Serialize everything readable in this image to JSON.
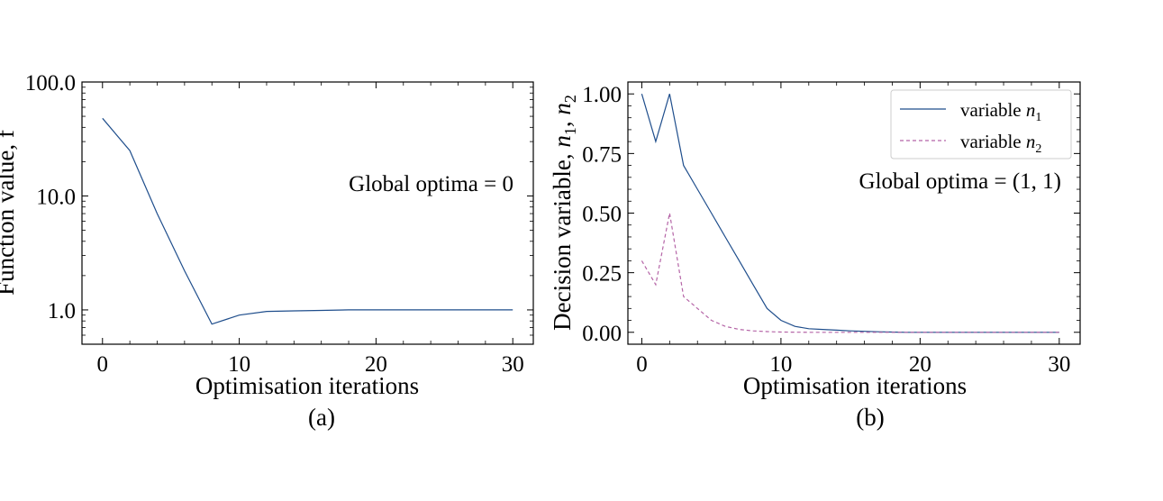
{
  "chart_data": [
    {
      "type": "line",
      "panel_label": "(a)",
      "xlabel": "Optimisation iterations",
      "ylabel": "Function value, f",
      "yscale": "log",
      "xlim": [
        -1.5,
        31.5
      ],
      "ylim": [
        0.5,
        100
      ],
      "xticks": [
        0,
        10,
        20,
        30
      ],
      "xtick_labels": [
        "0",
        "10",
        "20",
        "30"
      ],
      "yticks": [
        1,
        10,
        100
      ],
      "ytick_labels": [
        "1.0",
        "10.0",
        "100.0"
      ],
      "annotation": "Global optima = 0",
      "series": [
        {
          "color": "#1f4e8c",
          "dash": "solid",
          "x": [
            0,
            2,
            4,
            6,
            8,
            10,
            12,
            14,
            16,
            18,
            20,
            22,
            24,
            26,
            28,
            30
          ],
          "y": [
            48,
            25,
            7,
            2.2,
            0.75,
            0.9,
            0.97,
            0.98,
            0.99,
            1.0,
            1.0,
            1.0,
            1.0,
            1.0,
            1.0,
            1.0
          ]
        }
      ]
    },
    {
      "type": "line",
      "panel_label": "(b)",
      "xlabel": "Optimisation iterations",
      "ylabel": "Decision variable, n1, n2",
      "xlim": [
        -1.0,
        31.5
      ],
      "ylim": [
        -0.05,
        1.05
      ],
      "xticks": [
        0,
        10,
        20,
        30
      ],
      "xtick_labels": [
        "0",
        "10",
        "20",
        "30"
      ],
      "yticks": [
        0,
        0.25,
        0.5,
        0.75,
        1.0
      ],
      "ytick_labels": [
        "0.00",
        "0.25",
        "0.50",
        "0.75",
        "1.00"
      ],
      "annotation": "Global optima = (1, 1)",
      "legend_position": "top-right",
      "series": [
        {
          "name": "variable n1",
          "color": "#1f4e8c",
          "dash": "solid",
          "x": [
            0,
            1,
            2,
            3,
            4,
            5,
            6,
            7,
            8,
            9,
            10,
            11,
            12,
            13,
            14,
            15,
            16,
            17,
            18,
            19,
            20,
            22,
            24,
            26,
            28,
            30
          ],
          "y": [
            1.0,
            0.8,
            1.0,
            0.7,
            0.6,
            0.5,
            0.4,
            0.3,
            0.2,
            0.1,
            0.05,
            0.025,
            0.015,
            0.012,
            0.009,
            0.006,
            0.004,
            0.002,
            0.001,
            0.0,
            0.0,
            0.0,
            0.0,
            0.0,
            0.0,
            0.0
          ]
        },
        {
          "name": "variable n2",
          "color": "#b565a7",
          "dash": "dashed",
          "x": [
            0,
            1,
            2,
            3,
            4,
            5,
            6,
            7,
            8,
            9,
            10,
            12,
            14,
            16,
            18,
            20,
            22,
            24,
            26,
            28,
            30
          ],
          "y": [
            0.3,
            0.2,
            0.5,
            0.15,
            0.1,
            0.05,
            0.025,
            0.012,
            0.006,
            0.003,
            0.001,
            0.0,
            0.0,
            0.0,
            0.0,
            0.0,
            0.0,
            0.0,
            0.0,
            0.0,
            0.0
          ]
        }
      ]
    }
  ]
}
